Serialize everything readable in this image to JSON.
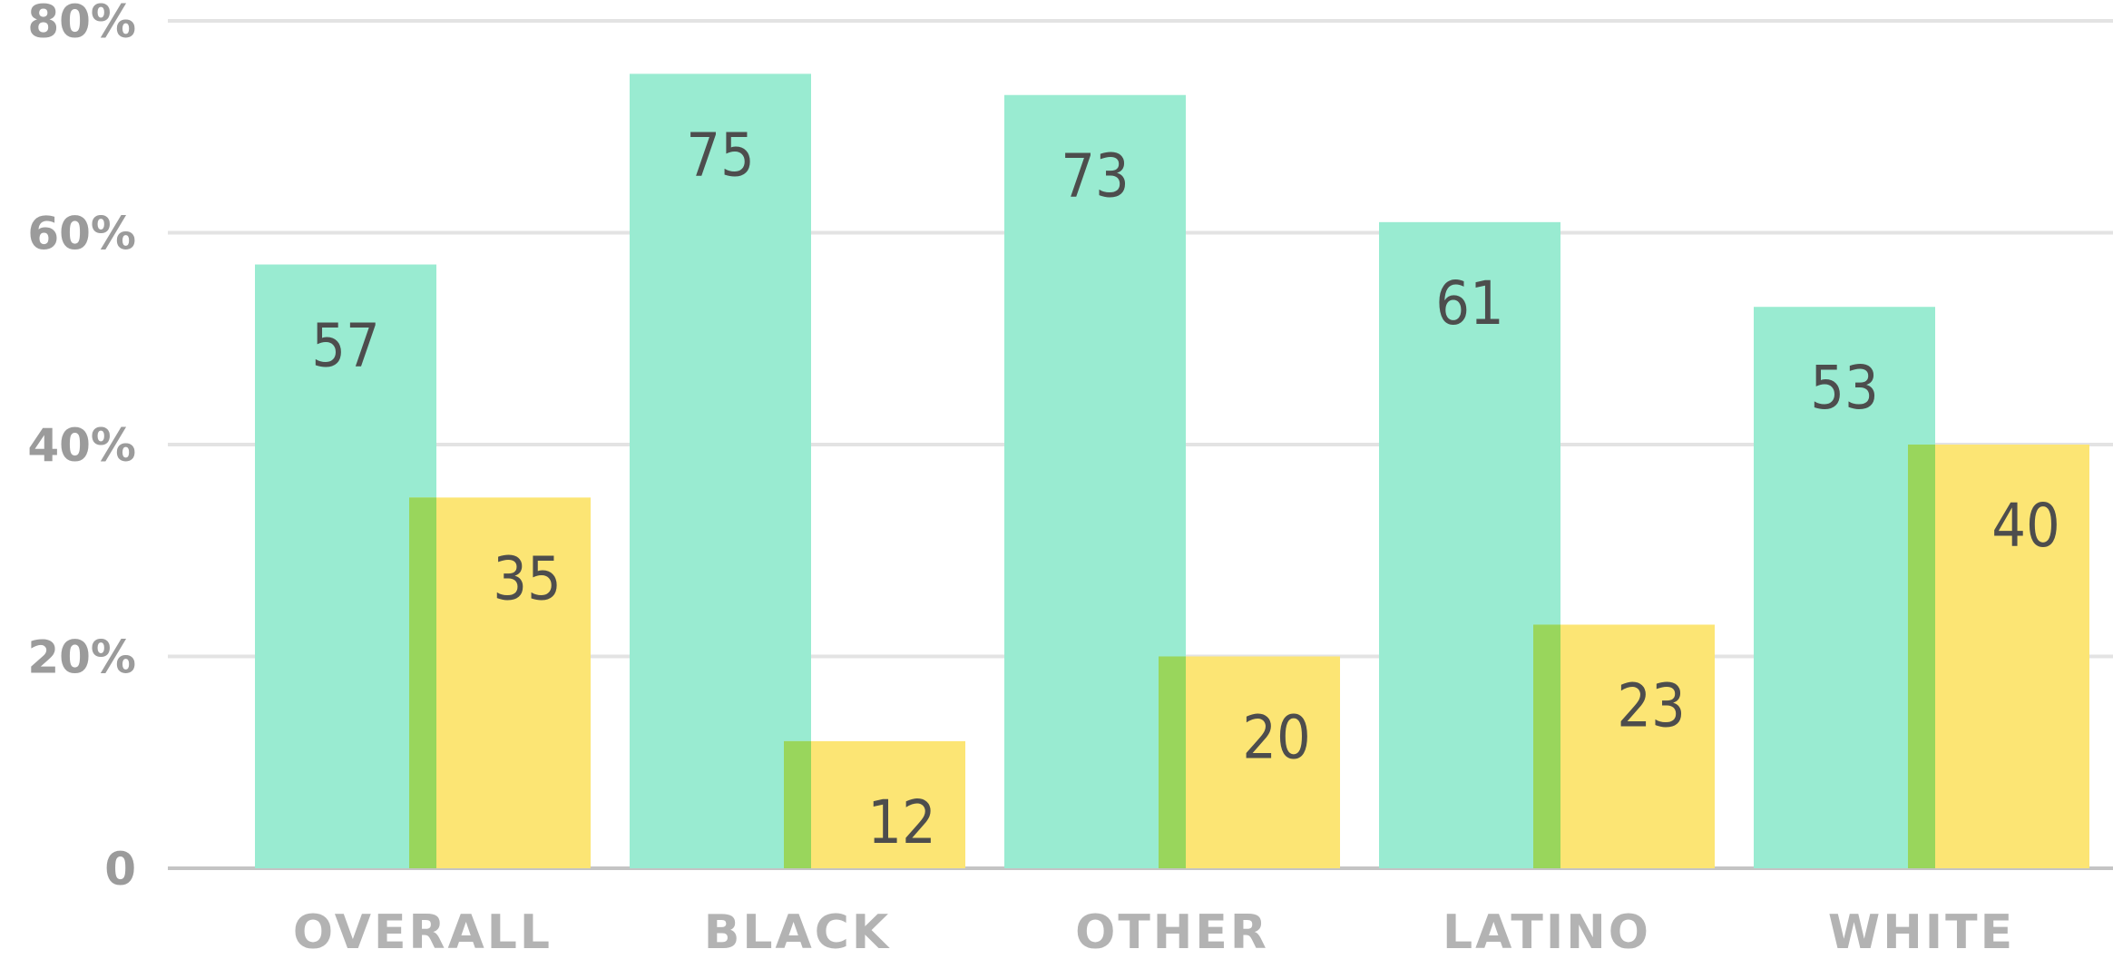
{
  "chart_data": {
    "type": "bar",
    "categories": [
      "OVERALL",
      "BLACK",
      "OTHER",
      "LATINO",
      "WHITE"
    ],
    "series": [
      {
        "values": [
          57,
          75,
          73,
          61,
          53
        ],
        "color": "#99ebd1"
      },
      {
        "values": [
          35,
          12,
          20,
          23,
          40
        ],
        "color": "#fce574"
      }
    ],
    "overlap_color": "#99d65c",
    "ylim": [
      0,
      80
    ],
    "yticks": [
      {
        "value": 0,
        "label": "0"
      },
      {
        "value": 20,
        "label": "20%"
      },
      {
        "value": 40,
        "label": "40%"
      },
      {
        "value": 60,
        "label": "60%"
      },
      {
        "value": 80,
        "label": "80%"
      }
    ],
    "grid": true,
    "title": "",
    "xlabel": "",
    "ylabel": "",
    "colors": {
      "grid": "#e3e3e3",
      "baseline": "#c4c4c4",
      "data_label": "#4d4d4d"
    }
  }
}
